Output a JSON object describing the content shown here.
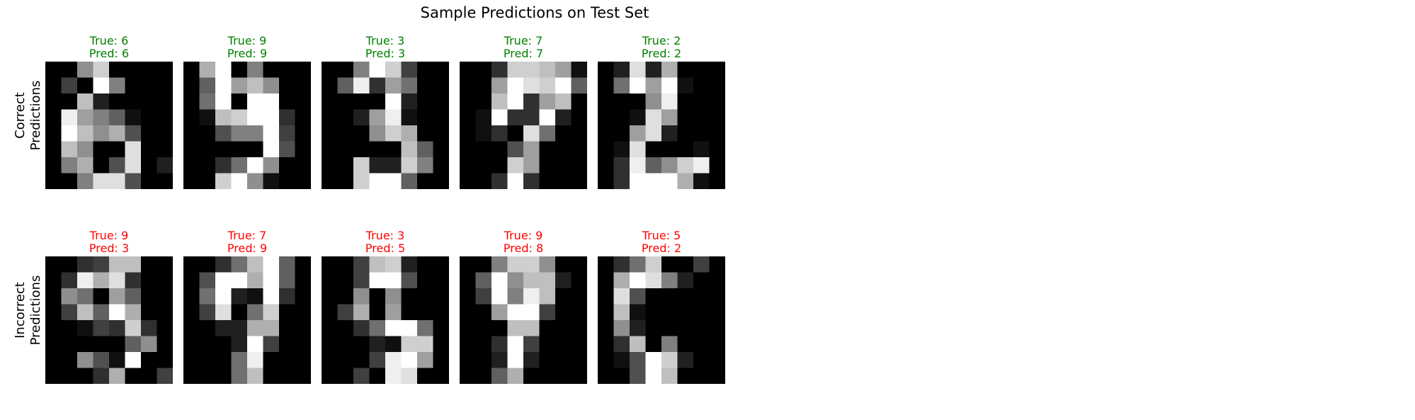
{
  "figure": {
    "title": "Sample Predictions on Test Set"
  },
  "rows": [
    {
      "label": "Correct\nPredictions",
      "label_lines": [
        "Correct",
        "Predictions"
      ],
      "title_color": "#008000"
    },
    {
      "label": "Incorrect\nPredictions",
      "label_lines": [
        "Incorrect",
        "Predictions"
      ],
      "title_color": "#ff0000"
    }
  ],
  "chart_data": {
    "type": "heatmap",
    "title": "Sample Predictions on Test Set",
    "colormap": "gray",
    "value_range": [
      0,
      16
    ],
    "grid": false,
    "axes": "off",
    "panels": [
      {
        "row": 0,
        "true_label": "True: 6",
        "pred_label": "Pred: 6",
        "pixels": [
          [
            0,
            0,
            9,
            13,
            0,
            0,
            0,
            0
          ],
          [
            0,
            4,
            0,
            16,
            8,
            0,
            0,
            0
          ],
          [
            0,
            0,
            12,
            2,
            0,
            0,
            0,
            0
          ],
          [
            0,
            15,
            10,
            8,
            6,
            1,
            0,
            0
          ],
          [
            0,
            16,
            12,
            9,
            11,
            5,
            0,
            0
          ],
          [
            0,
            12,
            9,
            0,
            0,
            14,
            0,
            0
          ],
          [
            0,
            8,
            11,
            0,
            5,
            14,
            0,
            2
          ],
          [
            0,
            0,
            8,
            14,
            14,
            5,
            0,
            0
          ]
        ]
      },
      {
        "row": 0,
        "true_label": "True: 9",
        "pred_label": "Pred: 9",
        "pixels": [
          [
            0,
            11,
            16,
            0,
            8,
            0,
            0,
            0
          ],
          [
            0,
            6,
            16,
            10,
            12,
            9,
            0,
            0
          ],
          [
            0,
            7,
            16,
            0,
            16,
            16,
            0,
            0
          ],
          [
            0,
            1,
            12,
            13,
            16,
            16,
            3,
            0
          ],
          [
            0,
            0,
            5,
            8,
            8,
            16,
            4,
            0
          ],
          [
            0,
            0,
            0,
            0,
            0,
            16,
            5,
            0
          ],
          [
            0,
            0,
            3,
            7,
            16,
            9,
            0,
            0
          ],
          [
            0,
            0,
            13,
            16,
            9,
            1,
            0,
            0
          ]
        ]
      },
      {
        "row": 0,
        "true_label": "True: 3",
        "pred_label": "Pred: 3",
        "pixels": [
          [
            0,
            0,
            8,
            16,
            13,
            4,
            0,
            0
          ],
          [
            0,
            6,
            15,
            3,
            10,
            7,
            0,
            0
          ],
          [
            0,
            0,
            0,
            0,
            16,
            2,
            0,
            0
          ],
          [
            0,
            0,
            2,
            10,
            15,
            1,
            0,
            0
          ],
          [
            0,
            0,
            0,
            9,
            13,
            11,
            0,
            0
          ],
          [
            0,
            0,
            0,
            0,
            0,
            12,
            6,
            0
          ],
          [
            0,
            0,
            13,
            2,
            2,
            13,
            8,
            0
          ],
          [
            0,
            0,
            13,
            16,
            16,
            6,
            0,
            0
          ]
        ]
      },
      {
        "row": 0,
        "true_label": "True: 7",
        "pred_label": "Pred: 7",
        "pixels": [
          [
            0,
            0,
            3,
            13,
            13,
            12,
            10,
            1
          ],
          [
            0,
            0,
            10,
            16,
            14,
            13,
            16,
            6
          ],
          [
            0,
            0,
            12,
            16,
            3,
            10,
            12,
            0
          ],
          [
            0,
            1,
            16,
            3,
            3,
            16,
            2,
            0
          ],
          [
            0,
            1,
            3,
            0,
            14,
            7,
            0,
            0
          ],
          [
            0,
            0,
            0,
            5,
            10,
            0,
            0,
            0
          ],
          [
            0,
            0,
            0,
            13,
            10,
            0,
            0,
            0
          ],
          [
            0,
            0,
            3,
            16,
            3,
            0,
            0,
            0
          ]
        ]
      },
      {
        "row": 0,
        "true_label": "True: 2",
        "pred_label": "Pred: 2",
        "pixels": [
          [
            0,
            2,
            14,
            2,
            11,
            0,
            0,
            0
          ],
          [
            0,
            7,
            16,
            10,
            16,
            1,
            0,
            0
          ],
          [
            0,
            0,
            0,
            9,
            15,
            0,
            0,
            0
          ],
          [
            0,
            0,
            1,
            14,
            10,
            0,
            0,
            0
          ],
          [
            0,
            0,
            10,
            14,
            2,
            0,
            0,
            0
          ],
          [
            0,
            1,
            14,
            0,
            0,
            0,
            1,
            0
          ],
          [
            0,
            3,
            15,
            6,
            9,
            13,
            15,
            0
          ],
          [
            0,
            3,
            16,
            16,
            16,
            11,
            1,
            0
          ]
        ]
      },
      {
        "row": 1,
        "true_label": "True: 9",
        "pred_label": "Pred: 3",
        "pixels": [
          [
            0,
            0,
            3,
            4,
            12,
            12,
            0,
            0
          ],
          [
            0,
            3,
            15,
            11,
            14,
            3,
            0,
            0
          ],
          [
            0,
            9,
            7,
            0,
            10,
            6,
            0,
            0
          ],
          [
            0,
            4,
            12,
            6,
            16,
            11,
            0,
            0
          ],
          [
            0,
            0,
            1,
            4,
            3,
            13,
            3,
            0
          ],
          [
            0,
            0,
            0,
            0,
            0,
            6,
            9,
            0
          ],
          [
            0,
            0,
            9,
            5,
            1,
            16,
            0,
            0
          ],
          [
            0,
            0,
            0,
            3,
            11,
            0,
            0,
            4
          ]
        ]
      },
      {
        "row": 1,
        "true_label": "True: 7",
        "pred_label": "Pred: 9",
        "pixels": [
          [
            0,
            0,
            3,
            7,
            12,
            16,
            6,
            0
          ],
          [
            0,
            5,
            16,
            16,
            11,
            16,
            6,
            0
          ],
          [
            0,
            7,
            16,
            2,
            1,
            16,
            3,
            0
          ],
          [
            0,
            4,
            14,
            0,
            7,
            13,
            0,
            0
          ],
          [
            0,
            0,
            2,
            2,
            11,
            11,
            0,
            0
          ],
          [
            0,
            0,
            0,
            2,
            16,
            4,
            0,
            0
          ],
          [
            0,
            0,
            0,
            7,
            15,
            0,
            0,
            0
          ],
          [
            0,
            0,
            0,
            7,
            12,
            0,
            0,
            0
          ]
        ]
      },
      {
        "row": 1,
        "true_label": "True: 3",
        "pred_label": "Pred: 5",
        "pixels": [
          [
            0,
            0,
            4,
            12,
            13,
            2,
            0,
            0
          ],
          [
            0,
            0,
            4,
            16,
            16,
            5,
            0,
            0
          ],
          [
            0,
            0,
            9,
            0,
            9,
            0,
            0,
            0
          ],
          [
            0,
            4,
            11,
            0,
            10,
            0,
            0,
            0
          ],
          [
            0,
            0,
            3,
            7,
            16,
            16,
            7,
            0
          ],
          [
            0,
            0,
            0,
            2,
            1,
            13,
            13,
            0
          ],
          [
            0,
            0,
            0,
            4,
            15,
            16,
            10,
            0
          ],
          [
            0,
            0,
            4,
            0,
            15,
            14,
            0,
            0
          ]
        ]
      },
      {
        "row": 1,
        "true_label": "True: 9",
        "pred_label": "Pred: 8",
        "pixels": [
          [
            0,
            0,
            8,
            13,
            13,
            9,
            0,
            0
          ],
          [
            0,
            6,
            16,
            9,
            12,
            12,
            2,
            0
          ],
          [
            0,
            4,
            16,
            8,
            15,
            12,
            0,
            0
          ],
          [
            0,
            0,
            10,
            16,
            16,
            4,
            0,
            0
          ],
          [
            0,
            0,
            0,
            12,
            12,
            0,
            0,
            0
          ],
          [
            0,
            0,
            3,
            16,
            4,
            0,
            0,
            0
          ],
          [
            0,
            0,
            2,
            16,
            2,
            0,
            0,
            0
          ],
          [
            0,
            0,
            6,
            11,
            0,
            0,
            0,
            0
          ]
        ]
      },
      {
        "row": 1,
        "true_label": "True: 5",
        "pred_label": "Pred: 2",
        "pixels": [
          [
            0,
            3,
            7,
            13,
            0,
            0,
            4,
            0
          ],
          [
            0,
            11,
            16,
            14,
            8,
            2,
            0,
            0
          ],
          [
            0,
            14,
            5,
            0,
            0,
            0,
            0,
            0
          ],
          [
            0,
            12,
            1,
            0,
            0,
            0,
            0,
            0
          ],
          [
            0,
            9,
            2,
            0,
            0,
            0,
            0,
            0
          ],
          [
            0,
            3,
            12,
            0,
            8,
            0,
            0,
            0
          ],
          [
            0,
            1,
            5,
            16,
            13,
            2,
            0,
            0
          ],
          [
            0,
            0,
            5,
            16,
            12,
            0,
            0,
            0
          ]
        ]
      }
    ]
  }
}
